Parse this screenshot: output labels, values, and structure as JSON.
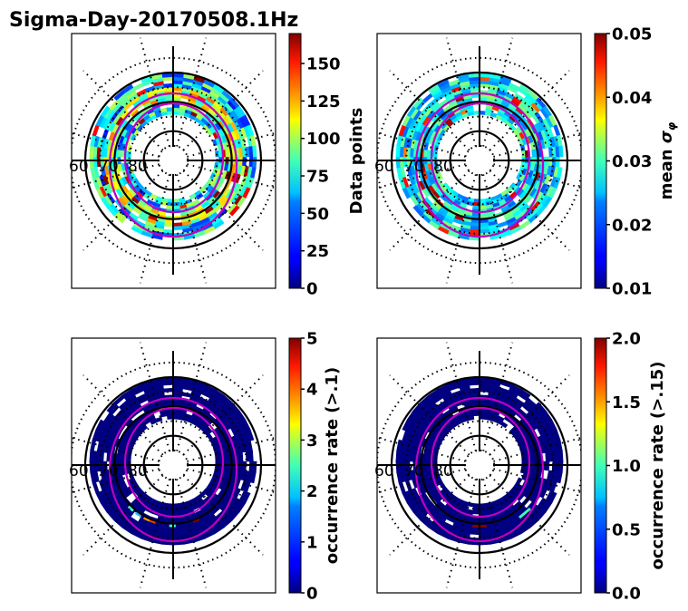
{
  "figure": {
    "title": "Sigma-Day-20170508.1Hz"
  },
  "chart_data": [
    {
      "type": "heatmap",
      "projection": "polar (magnetic latitude / MLT)",
      "title": "",
      "colormap": "jet",
      "colorbar": {
        "label": "Data points",
        "range": [
          0,
          170
        ],
        "ticks": [
          0,
          25,
          50,
          75,
          100,
          125,
          150
        ],
        "tick_labels": [
          "0",
          "25",
          "50",
          "75",
          "100",
          "125",
          "150"
        ]
      },
      "latitude_labels": [
        "60",
        "70",
        "80"
      ],
      "latitude_circles": [
        60,
        70,
        80
      ],
      "boundary_ovals": 2,
      "boundary_color": "#bf00bf",
      "ring_summary": "annulus between ~62 and ~75 deg latitude; values mostly 25-100, peaks ~150-170 near dawn-pre-noon and dusk"
    },
    {
      "type": "heatmap",
      "projection": "polar (magnetic latitude / MLT)",
      "title": "",
      "colormap": "jet",
      "colorbar": {
        "label": "mean σ_φ",
        "label_base": "mean ",
        "label_symbol": "σ",
        "label_sub": "φ",
        "range": [
          0.01,
          0.05
        ],
        "ticks": [
          0.01,
          0.02,
          0.03,
          0.04,
          0.05
        ],
        "tick_labels": [
          "0.01",
          "0.02",
          "0.03",
          "0.04",
          "0.05"
        ]
      },
      "latitude_labels": [
        "60",
        "70",
        "80"
      ],
      "latitude_circles": [
        60,
        70,
        80
      ],
      "boundary_ovals": 2,
      "boundary_color": "#bf00bf",
      "ring_summary": "annulus values mostly 0.015-0.03; high values (~0.045-0.05) near the equatorward edge of the inner oval on the nightside/dawn"
    },
    {
      "type": "heatmap",
      "projection": "polar (magnetic latitude / MLT)",
      "title": "",
      "colormap": "jet",
      "colorbar": {
        "label": "occurrence rate (>.1)",
        "range": [
          0,
          5
        ],
        "ticks": [
          0,
          1,
          2,
          3,
          4,
          5
        ],
        "tick_labels": [
          "0",
          "1",
          "2",
          "3",
          "4",
          "5"
        ]
      },
      "latitude_labels": [
        "60",
        "70",
        "80"
      ],
      "latitude_circles": [
        60,
        70,
        80
      ],
      "boundary_ovals": 2,
      "boundary_color": "#bf00bf",
      "ring_summary": "annulus almost entirely ~0; few bins ~1.5-5 near inner edge on the nightside"
    },
    {
      "type": "heatmap",
      "projection": "polar (magnetic latitude / MLT)",
      "title": "",
      "colormap": "jet",
      "colorbar": {
        "label": "occurrence rate (>.15)",
        "range": [
          0.0,
          2.0
        ],
        "ticks": [
          0.0,
          0.5,
          1.0,
          1.5,
          2.0
        ],
        "tick_labels": [
          "0.0",
          "0.5",
          "1.0",
          "1.5",
          "2.0"
        ]
      },
      "latitude_labels": [
        "60",
        "70",
        "80"
      ],
      "latitude_circles": [
        60,
        70,
        80
      ],
      "boundary_ovals": 2,
      "boundary_color": "#bf00bf",
      "ring_summary": "annulus almost entirely 0.0; one bin ~2.0 at midnight and one ~0.8 pre-midnight"
    }
  ]
}
